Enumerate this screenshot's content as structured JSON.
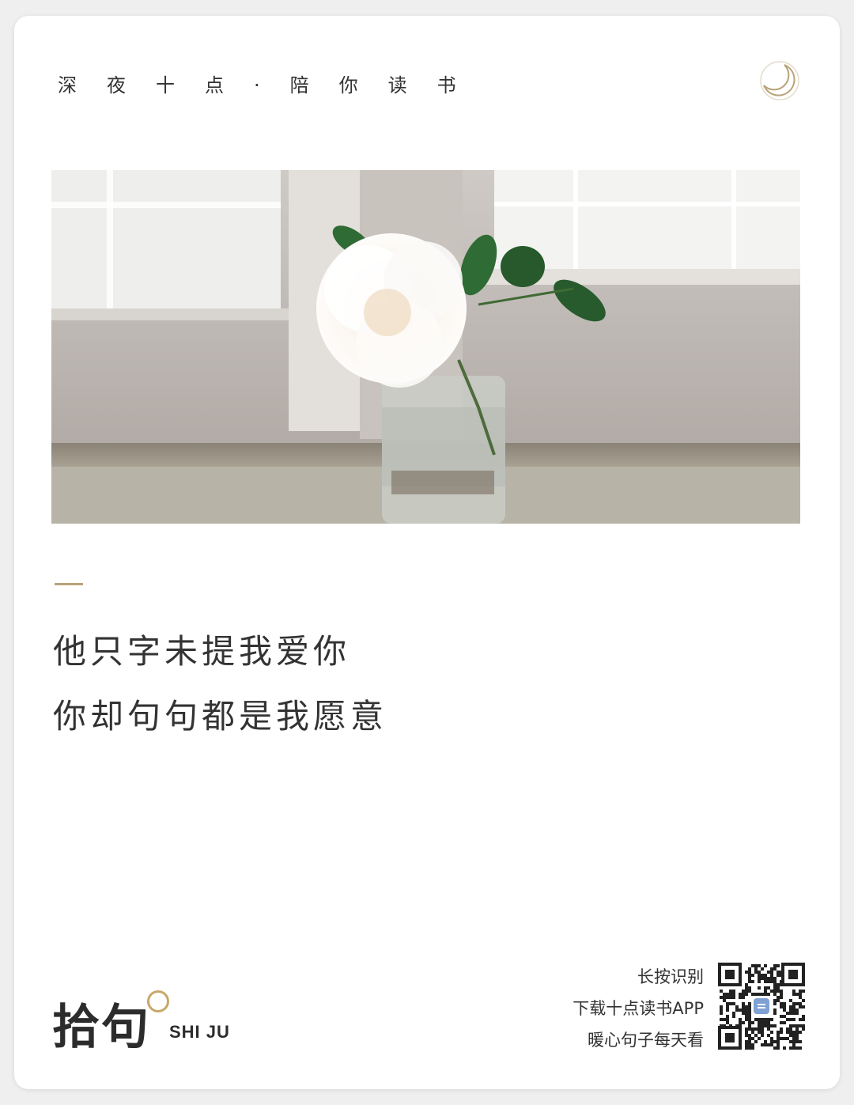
{
  "header": {
    "title": "深夜十点·陪你读书",
    "moon_icon": "crescent-moon-icon"
  },
  "photo": {
    "subject": "white-flower-in-glass-vase-photo"
  },
  "quote": {
    "line1": "他只字未提我爱你",
    "line2": "你却句句都是我愿意"
  },
  "brand": {
    "cn": "拾句",
    "en": "SHI JU"
  },
  "cta": {
    "line1": "长按识别",
    "line2": "下载十点读书APP",
    "line3": "暖心句子每天看"
  },
  "colors": {
    "accent": "#b9a37a",
    "brand_ring": "#c7a86a",
    "text": "#333333"
  }
}
